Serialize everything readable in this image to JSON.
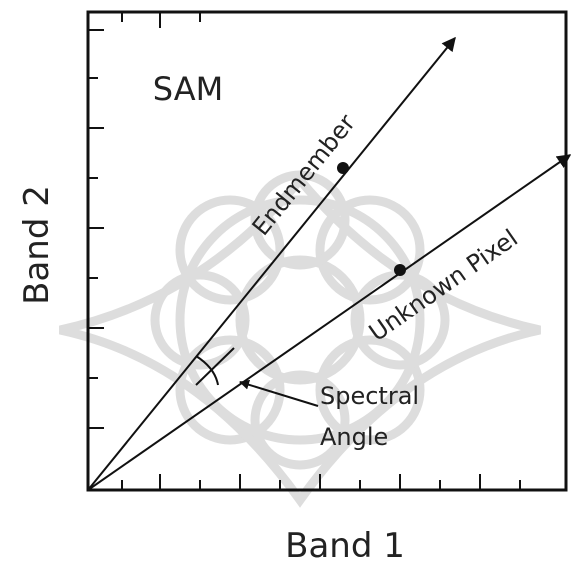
{
  "title": "SAM",
  "axes": {
    "x_label": "Band 1",
    "y_label": "Band 2"
  },
  "vectors": {
    "endmember": "Endmember",
    "unknown_pixel": "Unknown Pixel"
  },
  "angle_label": [
    "Spectral",
    "Angle"
  ]
}
